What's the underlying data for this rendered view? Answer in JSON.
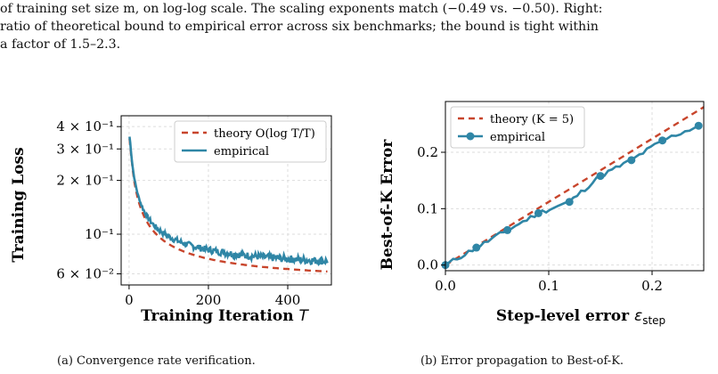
{
  "caption_top": {
    "line1": "of training set size m, on log-log scale. The scaling exponents match (−0.49 vs. −0.50). Right:",
    "line2": "ratio of theoretical bound to empirical error across six benchmarks; the bound is tight within",
    "line3": "a factor of 1.5–2.3."
  },
  "subcaptions": {
    "a": "(a) Convergence rate verification.",
    "b": "(b) Error propagation to Best-of-K."
  },
  "colors": {
    "theory": "#c8452c",
    "empirical": "#2f86a6"
  },
  "chart_data": [
    {
      "type": "line",
      "xlabel": "Training Iteration T",
      "ylabel": "Training Loss",
      "yscale": "log",
      "xlim": [
        -20,
        510
      ],
      "ylim": [
        0.052,
        0.46
      ],
      "x_ticks": [
        "0",
        "200",
        "400"
      ],
      "y_ticks": [
        "4 × 10⁻¹",
        "3 × 10⁻¹",
        "2 × 10⁻¹",
        "10⁻¹",
        "6 × 10⁻²"
      ],
      "grid": true,
      "legend_position": "top-right",
      "series": [
        {
          "name": "theory O(log T/T)",
          "style": "dashed",
          "x": [
            1,
            10,
            25,
            50,
            100,
            200,
            300,
            400,
            500
          ],
          "y": [
            0.42,
            0.18,
            0.115,
            0.085,
            0.071,
            0.062,
            0.058,
            0.056,
            0.055
          ]
        },
        {
          "name": "empirical",
          "style": "solid",
          "x": [
            1,
            10,
            25,
            50,
            100,
            200,
            300,
            400,
            500
          ],
          "y": [
            0.42,
            0.19,
            0.12,
            0.092,
            0.077,
            0.068,
            0.064,
            0.062,
            0.06
          ]
        }
      ]
    },
    {
      "type": "line",
      "xlabel": "Step-level error ε_step",
      "ylabel": "Best-of-K Error",
      "xlim": [
        0.0,
        0.25
      ],
      "ylim": [
        -0.01,
        0.29
      ],
      "x_ticks": [
        "0.0",
        "0.1",
        "0.2"
      ],
      "y_ticks": [
        "0.0",
        "0.1",
        "0.2"
      ],
      "grid": true,
      "legend_position": "top-left",
      "series": [
        {
          "name": "theory (K = 5)",
          "style": "dashed",
          "x": [
            0.0,
            0.05,
            0.1,
            0.15,
            0.2,
            0.25
          ],
          "y": [
            0.0,
            0.056,
            0.112,
            0.168,
            0.224,
            0.28
          ]
        },
        {
          "name": "empirical",
          "style": "solid-markers",
          "x": [
            0.0,
            0.03,
            0.06,
            0.09,
            0.12,
            0.15,
            0.18,
            0.21,
            0.245
          ],
          "y": [
            0.0,
            0.031,
            0.062,
            0.092,
            0.112,
            0.158,
            0.186,
            0.221,
            0.247
          ]
        }
      ]
    }
  ]
}
